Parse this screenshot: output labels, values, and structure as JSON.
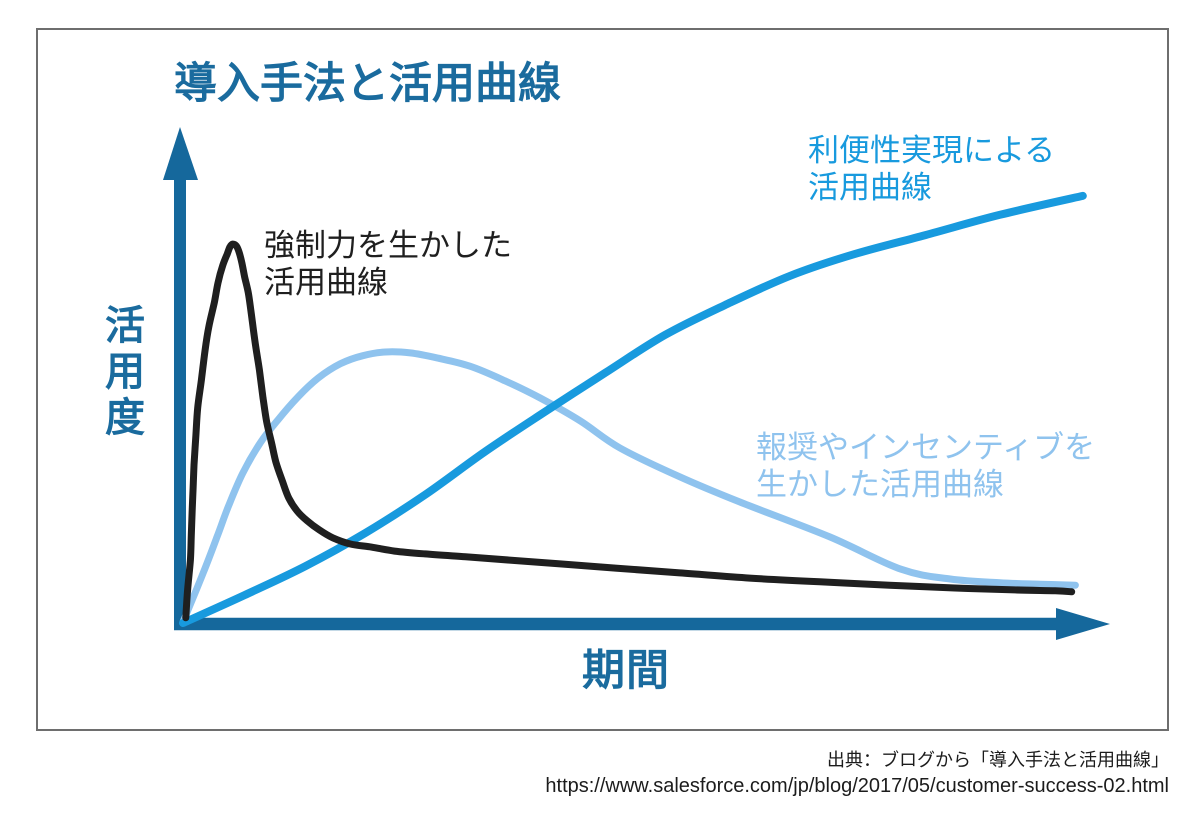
{
  "chart": {
    "title": "導入手法と活用曲線",
    "ylabel": "活用度",
    "xlabel": "期間",
    "axis_color": "#15689c",
    "frame_border_color": "#6e6e6e"
  },
  "chart_data": {
    "type": "line",
    "title": "導入手法と活用曲線",
    "xlabel": "期間",
    "ylabel": "活用度",
    "x_range": [
      0,
      1
    ],
    "y_range": [
      0,
      1
    ],
    "grid": false,
    "series": [
      {
        "name": "強制力を生かした活用曲線",
        "label_lines": "強制力を生かした\n活用曲線",
        "color": "#1f1f1f",
        "stroke_width": 7,
        "points": [
          [
            0.003,
            0.011
          ],
          [
            0.005,
            0.07
          ],
          [
            0.008,
            0.133
          ],
          [
            0.009,
            0.186
          ],
          [
            0.01,
            0.239
          ],
          [
            0.011,
            0.285
          ],
          [
            0.012,
            0.334
          ],
          [
            0.014,
            0.397
          ],
          [
            0.016,
            0.455
          ],
          [
            0.02,
            0.514
          ],
          [
            0.024,
            0.577
          ],
          [
            0.028,
            0.626
          ],
          [
            0.034,
            0.677
          ],
          [
            0.038,
            0.719
          ],
          [
            0.043,
            0.755
          ],
          [
            0.048,
            0.78
          ],
          [
            0.051,
            0.795
          ],
          [
            0.054,
            0.801
          ],
          [
            0.058,
            0.797
          ],
          [
            0.061,
            0.784
          ],
          [
            0.064,
            0.761
          ],
          [
            0.067,
            0.732
          ],
          [
            0.071,
            0.698
          ],
          [
            0.074,
            0.657
          ],
          [
            0.078,
            0.598
          ],
          [
            0.083,
            0.535
          ],
          [
            0.087,
            0.476
          ],
          [
            0.091,
            0.425
          ],
          [
            0.096,
            0.383
          ],
          [
            0.101,
            0.34
          ],
          [
            0.108,
            0.3
          ],
          [
            0.115,
            0.264
          ],
          [
            0.124,
            0.237
          ],
          [
            0.135,
            0.216
          ],
          [
            0.148,
            0.197
          ],
          [
            0.163,
            0.18
          ],
          [
            0.182,
            0.167
          ],
          [
            0.203,
            0.161
          ],
          [
            0.23,
            0.152
          ],
          [
            0.263,
            0.146
          ],
          [
            0.307,
            0.14
          ],
          [
            0.355,
            0.133
          ],
          [
            0.41,
            0.125
          ],
          [
            0.47,
            0.116
          ],
          [
            0.54,
            0.106
          ],
          [
            0.616,
            0.095
          ],
          [
            0.692,
            0.087
          ],
          [
            0.768,
            0.08
          ],
          [
            0.839,
            0.074
          ],
          [
            0.904,
            0.07
          ],
          [
            0.948,
            0.068
          ],
          [
            0.966,
            0.066
          ]
        ]
      },
      {
        "name": "報奨やインセンティブを生かした活用曲線",
        "label_lines": "報奨やインセンティブを\n生かした活用曲線",
        "color": "#8fc3ee",
        "stroke_width": 7,
        "points": [
          [
            0.0,
            0.002
          ],
          [
            0.022,
            0.106
          ],
          [
            0.037,
            0.182
          ],
          [
            0.049,
            0.245
          ],
          [
            0.065,
            0.317
          ],
          [
            0.084,
            0.381
          ],
          [
            0.103,
            0.429
          ],
          [
            0.125,
            0.478
          ],
          [
            0.147,
            0.518
          ],
          [
            0.171,
            0.548
          ],
          [
            0.195,
            0.565
          ],
          [
            0.22,
            0.573
          ],
          [
            0.247,
            0.571
          ],
          [
            0.277,
            0.56
          ],
          [
            0.312,
            0.543
          ],
          [
            0.35,
            0.512
          ],
          [
            0.388,
            0.476
          ],
          [
            0.432,
            0.427
          ],
          [
            0.475,
            0.37
          ],
          [
            0.54,
            0.309
          ],
          [
            0.605,
            0.256
          ],
          [
            0.703,
            0.182
          ],
          [
            0.78,
            0.114
          ],
          [
            0.834,
            0.093
          ],
          [
            0.888,
            0.085
          ],
          [
            0.932,
            0.082
          ],
          [
            0.97,
            0.08
          ]
        ]
      },
      {
        "name": "利便性実現による活用曲線",
        "label_lines": "利便性実現による\n活用曲線",
        "color": "#189ade",
        "stroke_width": 8,
        "points": [
          [
            0.0,
            0.0
          ],
          [
            0.067,
            0.059
          ],
          [
            0.133,
            0.12
          ],
          [
            0.198,
            0.19
          ],
          [
            0.263,
            0.271
          ],
          [
            0.328,
            0.362
          ],
          [
            0.393,
            0.446
          ],
          [
            0.459,
            0.529
          ],
          [
            0.524,
            0.609
          ],
          [
            0.589,
            0.672
          ],
          [
            0.66,
            0.734
          ],
          [
            0.73,
            0.78
          ],
          [
            0.807,
            0.82
          ],
          [
            0.888,
            0.863
          ],
          [
            0.978,
            0.903
          ]
        ]
      }
    ]
  },
  "source": {
    "line1": "出典：ブログから「導入手法と活用曲線」",
    "line2": "https://www.salesforce.com/jp/blog/2017/05/customer-success-02.html"
  }
}
